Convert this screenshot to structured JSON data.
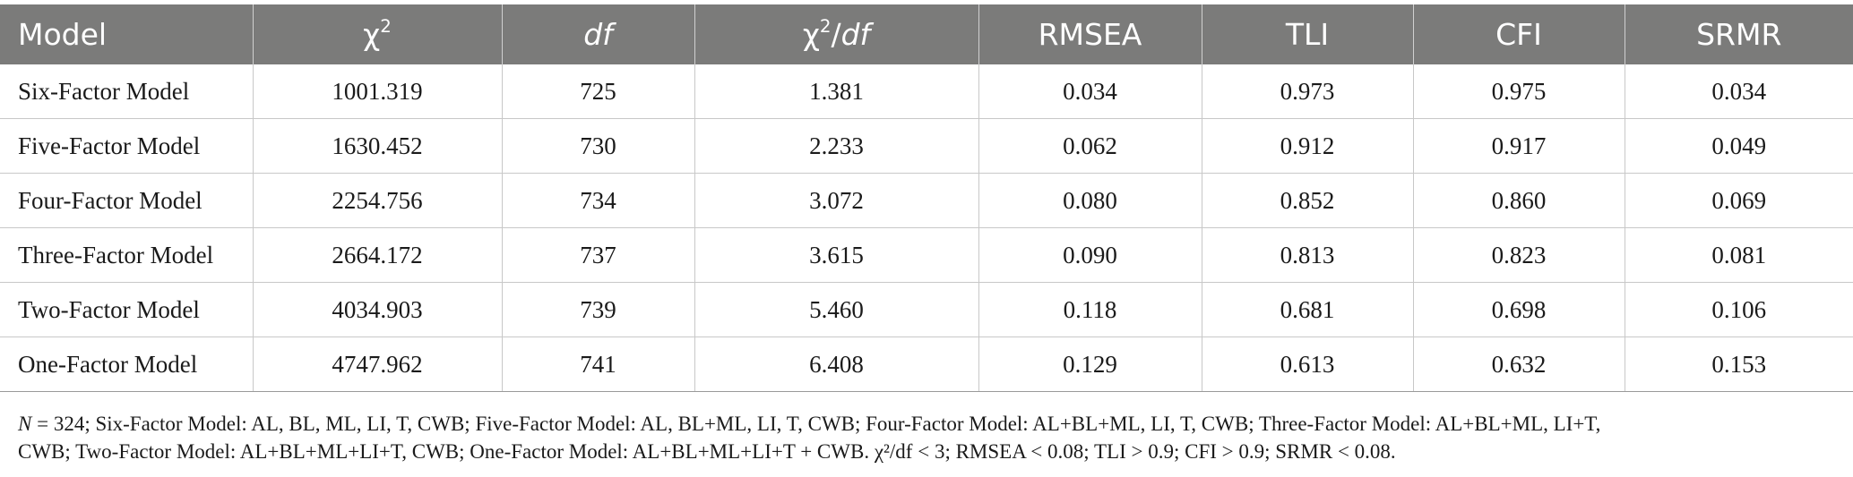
{
  "table": {
    "headers": [
      {
        "text": "Model",
        "italic": false
      },
      {
        "text": "χ",
        "sup": "2",
        "italic": false
      },
      {
        "text": "df",
        "italic": true
      },
      {
        "text": "χ",
        "sup": "2",
        "suffix": "/",
        "suffix_italic": "df"
      },
      {
        "text": "RMSEA",
        "italic": false
      },
      {
        "text": "TLI",
        "italic": false
      },
      {
        "text": "CFI",
        "italic": false
      },
      {
        "text": "SRMR",
        "italic": false
      }
    ],
    "rows": [
      [
        "Six-Factor Model",
        "1001.319",
        "725",
        "1.381",
        "0.034",
        "0.973",
        "0.975",
        "0.034"
      ],
      [
        "Five-Factor Model",
        "1630.452",
        "730",
        "2.233",
        "0.062",
        "0.912",
        "0.917",
        "0.049"
      ],
      [
        "Four-Factor Model",
        "2254.756",
        "734",
        "3.072",
        "0.080",
        "0.852",
        "0.860",
        "0.069"
      ],
      [
        "Three-Factor Model",
        "2664.172",
        "737",
        "3.615",
        "0.090",
        "0.813",
        "0.823",
        "0.081"
      ],
      [
        "Two-Factor Model",
        "4034.903",
        "739",
        "5.460",
        "0.118",
        "0.681",
        "0.698",
        "0.106"
      ],
      [
        "One-Factor Model",
        "4747.962",
        "741",
        "6.408",
        "0.129",
        "0.613",
        "0.632",
        "0.153"
      ]
    ]
  },
  "note": {
    "n_symbol": "N",
    "line1": " = 324; Six-Factor Model: AL, BL, ML, LI, T, CWB; Five-Factor Model: AL, BL+ML, LI, T, CWB; Four-Factor Model: AL+BL+ML, LI, T, CWB; Three-Factor Model: AL+BL+ML, LI+T,",
    "line2": "CWB; Two-Factor Model: AL+BL+ML+LI+T, CWB; One-Factor Model: AL+BL+ML+LI+T + CWB. χ²/df < 3; RMSEA < 0.08; TLI > 0.9; CFI > 0.9; SRMR < 0.08."
  }
}
